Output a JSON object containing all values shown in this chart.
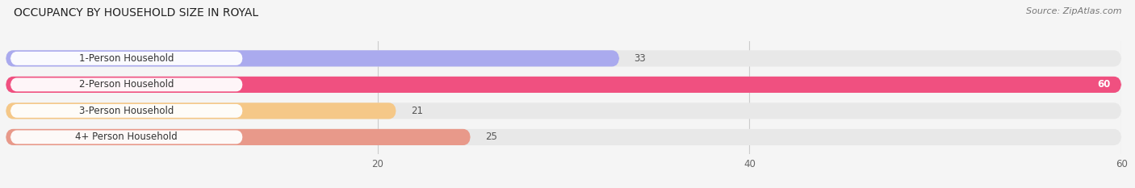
{
  "title": "OCCUPANCY BY HOUSEHOLD SIZE IN ROYAL",
  "source": "Source: ZipAtlas.com",
  "categories": [
    "1-Person Household",
    "2-Person Household",
    "3-Person Household",
    "4+ Person Household"
  ],
  "values": [
    33,
    60,
    21,
    25
  ],
  "bar_colors": [
    "#aaaaee",
    "#f05080",
    "#f5c888",
    "#e8998a"
  ],
  "bar_bg_color": "#e8e8e8",
  "xlim_data": [
    0,
    60
  ],
  "xticks": [
    20,
    40,
    60
  ],
  "figsize": [
    14.06,
    2.33
  ],
  "dpi": 100,
  "title_fontsize": 10,
  "label_fontsize": 8.5,
  "value_fontsize": 8.5,
  "source_fontsize": 8,
  "bg_color": "#f5f5f5"
}
